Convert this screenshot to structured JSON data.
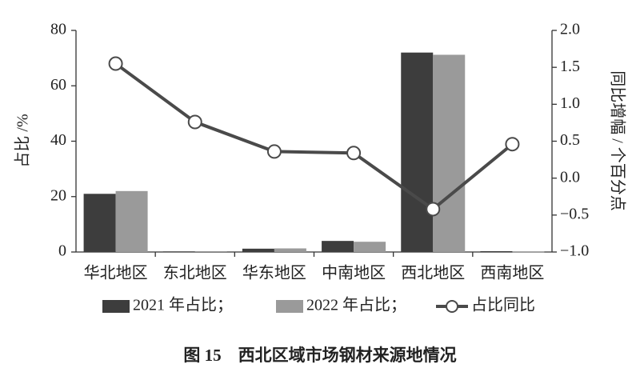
{
  "chart_data": {
    "type": "bar",
    "title": "图 15　西北区域市场钢材来源地情况",
    "y_label": "占比 /%",
    "y2_label": "同比增幅 / 个百分点",
    "categories": [
      "华北地区",
      "东北地区",
      "华东地区",
      "中南地区",
      "西北地区",
      "西南地区"
    ],
    "series": [
      {
        "name": "2021 年占比；",
        "type": "bar",
        "color": "#3d3d3d",
        "values": [
          21,
          0.2,
          1.2,
          4,
          72,
          0.3
        ]
      },
      {
        "name": "2022 年占比；",
        "type": "bar",
        "color": "#9a9a9a",
        "values": [
          22,
          0.3,
          1.3,
          3.7,
          71.2,
          0.2
        ]
      },
      {
        "name": "占比同比",
        "type": "line",
        "axis": "y2",
        "color": "#4a4a4a",
        "values": [
          1.55,
          0.76,
          0.36,
          0.34,
          -0.42,
          0.46
        ]
      }
    ],
    "ylim": [
      0,
      80
    ],
    "yticks": [
      0,
      20,
      40,
      60,
      80
    ],
    "y2lim": [
      -1.0,
      2.0
    ],
    "y2ticks": [
      {
        "value": -1.0,
        "label": "−1.0"
      },
      {
        "value": -0.5,
        "label": "−0.5"
      },
      {
        "value": 0,
        "label": "0.0"
      },
      {
        "value": 0.5,
        "label": "0.5"
      },
      {
        "value": 1.0,
        "label": "1.0"
      },
      {
        "value": 1.5,
        "label": "1.5"
      },
      {
        "value": 2.0,
        "label": "2.0"
      }
    ],
    "grid": false
  }
}
